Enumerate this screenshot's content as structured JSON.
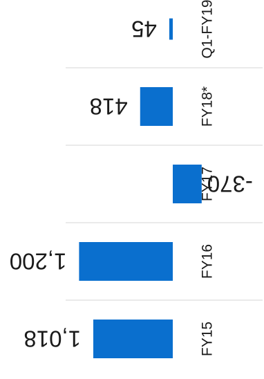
{
  "chart_data": {
    "type": "bar",
    "orientation": "horizontal",
    "rotated_view": "upside-down",
    "categories": [
      "FY15",
      "FY16",
      "FY17",
      "FY18*",
      "Q1-FY19"
    ],
    "values": [
      1018,
      1200,
      -370,
      418,
      45
    ],
    "value_labels": [
      "1,018",
      "1,200",
      "-370",
      "418",
      "45"
    ],
    "grid": false,
    "legend": "none",
    "colors": {
      "bar": "#0a6fce",
      "separator": "#d6d6d6",
      "text": "#1a1a1a"
    }
  }
}
